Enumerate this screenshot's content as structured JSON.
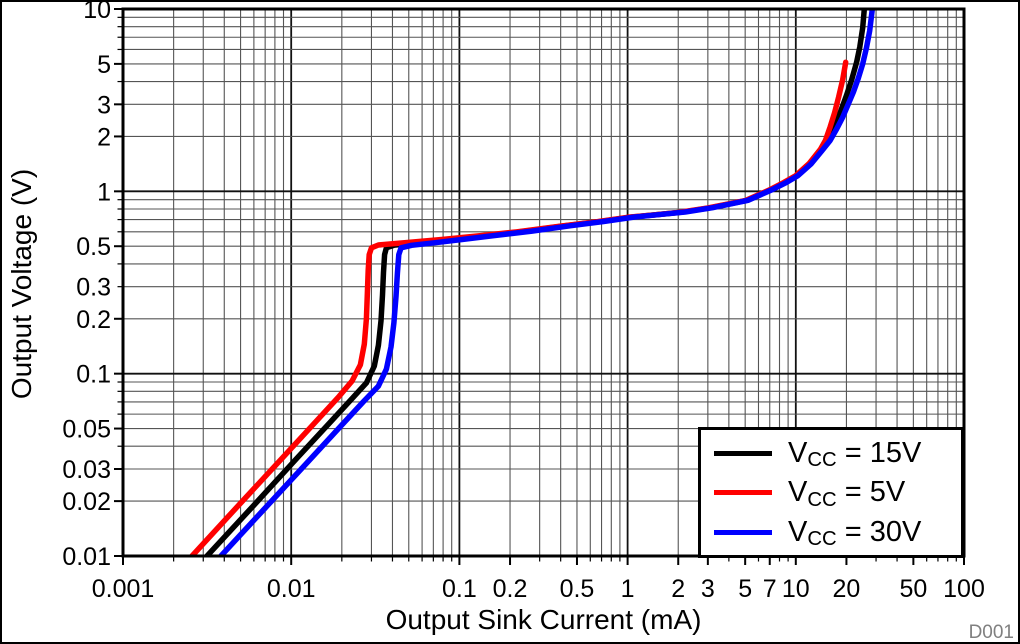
{
  "figure": {
    "watermark": "D001"
  },
  "colors": {
    "background": "#ffffff",
    "frame": "#000000",
    "grid_minor": "#555555",
    "grid_major": "#111111",
    "tick": "#000000",
    "watermark": "#808080",
    "series_black": "#000000",
    "series_red": "#ff0000",
    "series_blue": "#0000ff"
  },
  "chart_data": {
    "type": "line",
    "title": "",
    "grid": true,
    "x_axis": {
      "label": "Output Sink Current (mA)",
      "scale": "log",
      "range": [
        0.001,
        100
      ],
      "tick_labels": [
        {
          "v": 0.001,
          "t": "0.001"
        },
        {
          "v": 0.01,
          "t": "0.01"
        },
        {
          "v": 0.1,
          "t": "0.1"
        },
        {
          "v": 0.2,
          "t": "0.2"
        },
        {
          "v": 0.5,
          "t": "0.5"
        },
        {
          "v": 1,
          "t": "1"
        },
        {
          "v": 2,
          "t": "2"
        },
        {
          "v": 3,
          "t": "3"
        },
        {
          "v": 5,
          "t": "5"
        },
        {
          "v": 7,
          "t": "7"
        },
        {
          "v": 10,
          "t": "10"
        },
        {
          "v": 20,
          "t": "20"
        },
        {
          "v": 50,
          "t": "50"
        },
        {
          "v": 100,
          "t": "100"
        }
      ]
    },
    "y_axis": {
      "label": "Output Voltage (V)",
      "scale": "log",
      "range": [
        0.01,
        10
      ],
      "tick_labels": [
        {
          "v": 10,
          "t": "10"
        },
        {
          "v": 5,
          "t": "5"
        },
        {
          "v": 3,
          "t": "3"
        },
        {
          "v": 2,
          "t": "2"
        },
        {
          "v": 1,
          "t": "1"
        },
        {
          "v": 0.5,
          "t": "0.5"
        },
        {
          "v": 0.3,
          "t": "0.3"
        },
        {
          "v": 0.2,
          "t": "0.2"
        },
        {
          "v": 0.1,
          "t": "0.1"
        },
        {
          "v": 0.05,
          "t": "0.05"
        },
        {
          "v": 0.03,
          "t": "0.03"
        },
        {
          "v": 0.02,
          "t": "0.02"
        },
        {
          "v": 0.01,
          "t": "0.01"
        }
      ]
    },
    "legend": {
      "position": "bottom-right",
      "items": [
        {
          "label_main": "V",
          "label_sub": "CC",
          "label_rest": " = 15V",
          "color": "#000000"
        },
        {
          "label_main": "V",
          "label_sub": "CC",
          "label_rest": " = 5V",
          "color": "#ff0000"
        },
        {
          "label_main": "V",
          "label_sub": "CC",
          "label_rest": " = 30V",
          "color": "#0000ff"
        }
      ]
    },
    "series": [
      {
        "name": "VCC = 15V",
        "color": "#000000",
        "points": [
          [
            0.00316,
            0.01
          ],
          [
            0.006,
            0.019
          ],
          [
            0.011,
            0.035
          ],
          [
            0.017,
            0.054
          ],
          [
            0.023,
            0.073
          ],
          [
            0.028,
            0.089
          ],
          [
            0.0312,
            0.11
          ],
          [
            0.033,
            0.143
          ],
          [
            0.0342,
            0.195
          ],
          [
            0.0349,
            0.27
          ],
          [
            0.0354,
            0.36
          ],
          [
            0.0359,
            0.45
          ],
          [
            0.0368,
            0.49
          ],
          [
            0.041,
            0.507
          ],
          [
            0.06,
            0.525
          ],
          [
            0.09,
            0.546
          ],
          [
            0.14,
            0.571
          ],
          [
            0.24,
            0.603
          ],
          [
            0.42,
            0.647
          ],
          [
            0.68,
            0.682
          ],
          [
            1.05,
            0.722
          ],
          [
            1.55,
            0.747
          ],
          [
            2.1,
            0.768
          ],
          [
            3.1,
            0.812
          ],
          [
            5.1,
            0.892
          ],
          [
            7.1,
            1.02
          ],
          [
            8.6,
            1.12
          ],
          [
            10.1,
            1.22
          ],
          [
            12,
            1.41
          ],
          [
            14,
            1.68
          ],
          [
            15.5,
            1.9
          ],
          [
            17,
            2.3
          ],
          [
            18.5,
            2.75
          ],
          [
            20,
            3.35
          ],
          [
            21.5,
            4.1
          ],
          [
            23,
            5.1
          ],
          [
            24,
            6.2
          ],
          [
            25,
            7.9
          ],
          [
            25.6,
            10.3
          ]
        ]
      },
      {
        "name": "VCC = 5V",
        "color": "#ff0000",
        "points": [
          [
            0.00257,
            0.01
          ],
          [
            0.005,
            0.0195
          ],
          [
            0.009,
            0.035
          ],
          [
            0.014,
            0.0545
          ],
          [
            0.019,
            0.074
          ],
          [
            0.023,
            0.091
          ],
          [
            0.0258,
            0.112
          ],
          [
            0.0272,
            0.145
          ],
          [
            0.028,
            0.2
          ],
          [
            0.0284,
            0.28
          ],
          [
            0.0287,
            0.37
          ],
          [
            0.0291,
            0.45
          ],
          [
            0.03,
            0.49
          ],
          [
            0.033,
            0.508
          ],
          [
            0.05,
            0.525
          ],
          [
            0.08,
            0.545
          ],
          [
            0.13,
            0.57
          ],
          [
            0.22,
            0.6
          ],
          [
            0.4,
            0.645
          ],
          [
            0.65,
            0.68
          ],
          [
            1,
            0.72
          ],
          [
            1.5,
            0.745
          ],
          [
            2,
            0.765
          ],
          [
            3,
            0.81
          ],
          [
            5,
            0.89
          ],
          [
            7,
            1.02
          ],
          [
            8.5,
            1.12
          ],
          [
            10,
            1.22
          ],
          [
            12,
            1.42
          ],
          [
            14,
            1.7
          ],
          [
            15,
            1.9
          ],
          [
            16,
            2.25
          ],
          [
            17,
            2.7
          ],
          [
            18,
            3.3
          ],
          [
            19,
            4.1
          ],
          [
            19.8,
            5.1
          ]
        ]
      },
      {
        "name": "VCC = 30V",
        "color": "#0000ff",
        "points": [
          [
            0.00382,
            0.01
          ],
          [
            0.007,
            0.0183
          ],
          [
            0.013,
            0.034
          ],
          [
            0.02,
            0.0523
          ],
          [
            0.027,
            0.0705
          ],
          [
            0.033,
            0.0855
          ],
          [
            0.0368,
            0.106
          ],
          [
            0.0392,
            0.14
          ],
          [
            0.0408,
            0.19
          ],
          [
            0.042,
            0.265
          ],
          [
            0.0428,
            0.355
          ],
          [
            0.0436,
            0.45
          ],
          [
            0.045,
            0.49
          ],
          [
            0.052,
            0.506
          ],
          [
            0.072,
            0.523
          ],
          [
            0.105,
            0.545
          ],
          [
            0.16,
            0.572
          ],
          [
            0.27,
            0.605
          ],
          [
            0.46,
            0.648
          ],
          [
            0.72,
            0.683
          ],
          [
            1.1,
            0.723
          ],
          [
            1.6,
            0.748
          ],
          [
            2.2,
            0.77
          ],
          [
            3.2,
            0.813
          ],
          [
            5.2,
            0.893
          ],
          [
            7.2,
            1.02
          ],
          [
            8.8,
            1.12
          ],
          [
            10.3,
            1.22
          ],
          [
            12.3,
            1.41
          ],
          [
            14.3,
            1.67
          ],
          [
            16,
            1.9
          ],
          [
            17.5,
            2.2
          ],
          [
            19,
            2.55
          ],
          [
            20.5,
            3.0
          ],
          [
            22,
            3.5
          ],
          [
            23.5,
            4.15
          ],
          [
            25,
            5.0
          ],
          [
            26.3,
            6.1
          ],
          [
            27.5,
            7.6
          ],
          [
            28.6,
            10.3
          ]
        ]
      }
    ]
  }
}
